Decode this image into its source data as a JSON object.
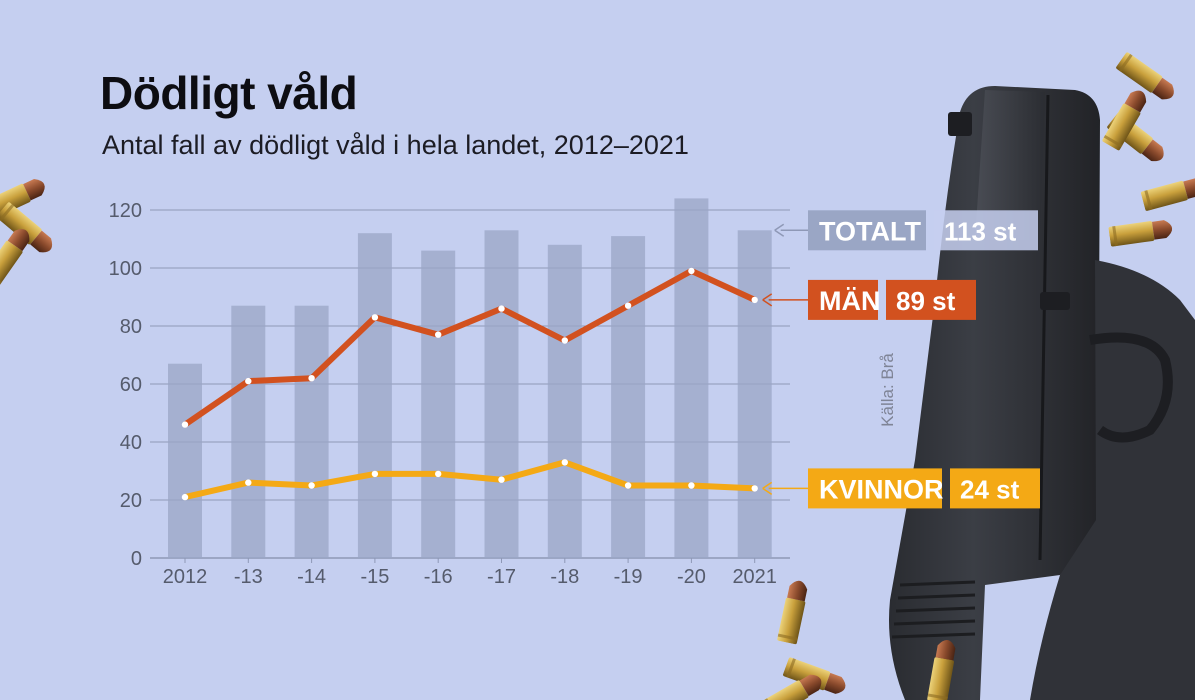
{
  "header": {
    "title": "Dödligt våld",
    "subtitle": "Antal fall av dödligt våld i hela landet, 2012–2021"
  },
  "source": "Källa: Brå",
  "colors": {
    "background": "#c5cff0",
    "bars": "#9aa6c5",
    "men": "#d2511f",
    "women": "#f4a915",
    "grid": "#8e98b6",
    "axis_text": "#555b6c",
    "pistol": "#2e3036",
    "bullet_brass": "#c9a03c",
    "bullet_copper": "#8a4a2c"
  },
  "decorations": [
    "pistol-image",
    "bullet-cartridges"
  ],
  "chart_data": {
    "type": "bar",
    "title": "Dödligt våld",
    "subtitle": "Antal fall av dödligt våld i hela landet, 2012–2021",
    "xlabel": "",
    "ylabel": "",
    "ylim": [
      0,
      130
    ],
    "yticks": [
      0,
      20,
      40,
      60,
      80,
      100,
      120
    ],
    "grid": true,
    "categories": [
      "2012",
      "-13",
      "-14",
      "-15",
      "-16",
      "-17",
      "-18",
      "-19",
      "-20",
      "2021"
    ],
    "series": [
      {
        "name": "TOTALT",
        "type": "bar",
        "color": "#9aa6c5",
        "end_label": "113 st",
        "values": [
          67,
          87,
          87,
          112,
          106,
          113,
          108,
          111,
          124,
          113
        ]
      },
      {
        "name": "MÄN",
        "type": "line",
        "color": "#d2511f",
        "end_label": "89 st",
        "values": [
          46,
          61,
          62,
          83,
          77,
          86,
          75,
          87,
          99,
          89
        ]
      },
      {
        "name": "KVINNOR",
        "type": "line",
        "color": "#f4a915",
        "end_label": "24 st",
        "values": [
          21,
          26,
          25,
          29,
          29,
          27,
          33,
          25,
          25,
          24
        ]
      }
    ],
    "legend_position": "right"
  }
}
